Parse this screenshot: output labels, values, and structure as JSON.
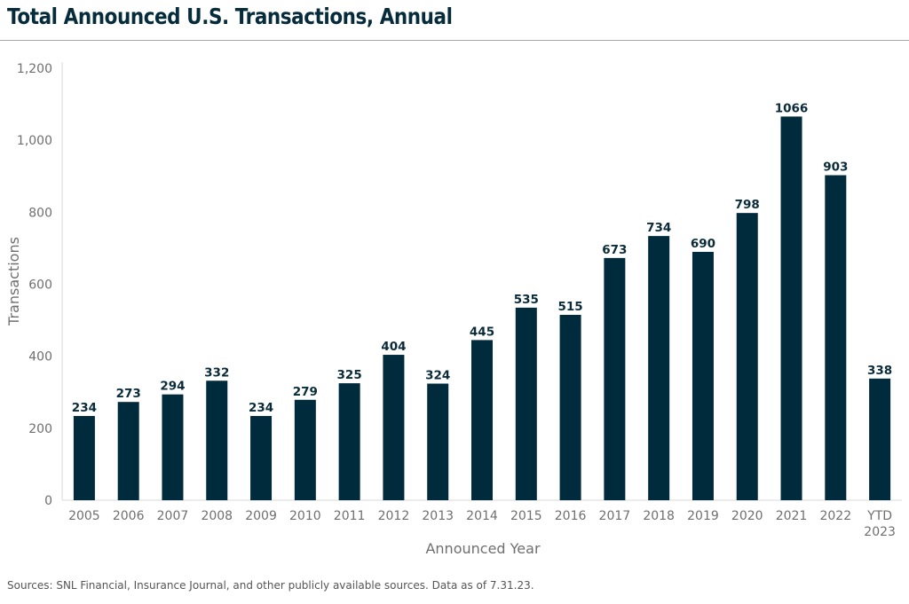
{
  "chart_data": {
    "type": "bar",
    "title": "Total Announced U.S. Transactions, Annual",
    "xlabel": "Announced Year",
    "ylabel": "Transactions",
    "categories": [
      "2005",
      "2006",
      "2007",
      "2008",
      "2009",
      "2010",
      "2011",
      "2012",
      "2013",
      "2014",
      "2015",
      "2016",
      "2017",
      "2018",
      "2019",
      "2020",
      "2021",
      "2022",
      "YTD 2023"
    ],
    "values": [
      234,
      273,
      294,
      332,
      234,
      279,
      325,
      404,
      324,
      445,
      535,
      515,
      673,
      734,
      690,
      798,
      1066,
      903,
      338
    ],
    "value_labels": [
      "234",
      "273",
      "294",
      "332",
      "234",
      "279",
      "325",
      "404",
      "324",
      "445",
      "535",
      "515",
      "673",
      "734",
      "690",
      "798",
      "1066",
      "903",
      "338"
    ],
    "ylim": [
      0,
      1200
    ],
    "yticks": [
      0,
      200,
      400,
      600,
      800,
      1000,
      1200
    ],
    "ytick_labels": [
      "0",
      "200",
      "400",
      "600",
      "800",
      "1,000",
      "1,200"
    ],
    "grid": false,
    "legend": "none",
    "bar_color": "#002b3d"
  },
  "source_note": "Sources: SNL Financial, Insurance Journal, and other publicly available sources. Data as of 7.31.23."
}
